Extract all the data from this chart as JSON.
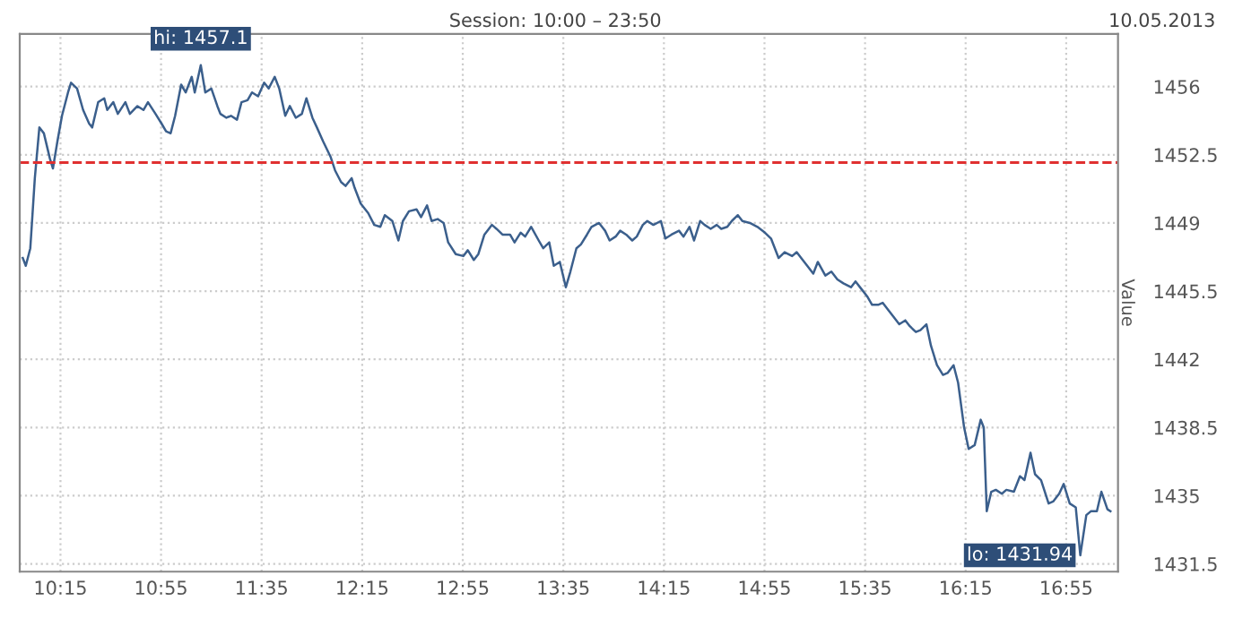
{
  "chart_data": {
    "type": "line",
    "ylabel": "Value",
    "annotations": [
      "Session: 10:00 – 23:50",
      "10.05.2013",
      {
        "text": "hi: 1457.1",
        "x": 11.18,
        "y": 1457.1
      },
      {
        "text": "lo: 1431.94",
        "x": 17.01,
        "y": 1431.94
      }
    ],
    "series": [
      {
        "color": "#3b5f8c",
        "x": [
          10.0,
          10.02,
          10.05,
          10.08,
          10.11,
          10.14,
          10.18,
          10.2,
          10.23,
          10.26,
          10.3,
          10.32,
          10.36,
          10.4,
          10.44,
          10.46,
          10.5,
          10.54,
          10.56,
          10.6,
          10.63,
          10.68,
          10.71,
          10.76,
          10.8,
          10.83,
          10.88,
          10.92,
          10.95,
          10.98,
          11.01,
          11.05,
          11.08,
          11.12,
          11.14,
          11.18,
          11.21,
          11.25,
          11.29,
          11.31,
          11.35,
          11.38,
          11.42,
          11.45,
          11.49,
          11.52,
          11.56,
          11.6,
          11.63,
          11.67,
          11.7,
          11.74,
          11.77,
          11.81,
          11.85,
          11.88,
          11.92,
          11.95,
          11.99,
          12.04,
          12.07,
          12.11,
          12.14,
          12.18,
          12.2,
          12.24,
          12.29,
          12.33,
          12.37,
          12.4,
          12.45,
          12.49,
          12.52,
          12.56,
          12.61,
          12.64,
          12.68,
          12.71,
          12.75,
          12.79,
          12.82,
          12.87,
          12.92,
          12.95,
          12.99,
          13.02,
          13.06,
          13.11,
          13.14,
          13.18,
          13.23,
          13.26,
          13.3,
          13.33,
          13.37,
          13.42,
          13.45,
          13.49,
          13.52,
          13.56,
          13.6,
          13.63,
          13.67,
          13.7,
          13.74,
          13.77,
          13.82,
          13.86,
          13.89,
          13.93,
          13.96,
          14.0,
          14.04,
          14.07,
          14.11,
          14.14,
          14.18,
          14.23,
          14.26,
          14.3,
          14.35,
          14.38,
          14.42,
          14.45,
          14.49,
          14.52,
          14.56,
          14.6,
          14.63,
          14.67,
          14.7,
          14.74,
          14.77,
          14.82,
          14.87,
          14.92,
          14.96,
          15.01,
          15.05,
          15.1,
          15.13,
          15.17,
          15.2,
          15.24,
          15.27,
          15.32,
          15.36,
          15.4,
          15.44,
          15.49,
          15.52,
          15.56,
          15.6,
          15.63,
          15.67,
          15.7,
          15.74,
          15.77,
          15.81,
          15.85,
          15.88,
          15.92,
          15.95,
          15.99,
          16.02,
          16.06,
          16.1,
          16.13,
          16.17,
          16.2,
          16.24,
          16.27,
          16.31,
          16.35,
          16.37,
          16.39,
          16.42,
          16.45,
          16.49,
          16.52,
          16.57,
          16.61,
          16.64,
          16.68,
          16.71,
          16.75,
          16.8,
          16.83,
          16.87,
          16.9,
          16.94,
          16.98,
          17.01,
          17.05,
          17.08,
          17.12,
          17.15,
          17.19,
          17.21
        ],
        "values": [
          1447.2,
          1446.8,
          1447.7,
          1451.3,
          1453.9,
          1453.6,
          1452.3,
          1451.8,
          1453.2,
          1454.5,
          1455.7,
          1456.2,
          1455.9,
          1454.8,
          1454.1,
          1453.9,
          1455.2,
          1455.4,
          1454.8,
          1455.2,
          1454.6,
          1455.2,
          1454.6,
          1455.0,
          1454.8,
          1455.2,
          1454.6,
          1454.1,
          1453.7,
          1453.6,
          1454.5,
          1456.1,
          1455.7,
          1456.5,
          1455.7,
          1457.1,
          1455.7,
          1455.9,
          1455.0,
          1454.6,
          1454.4,
          1454.5,
          1454.3,
          1455.2,
          1455.3,
          1455.7,
          1455.5,
          1456.2,
          1455.9,
          1456.5,
          1455.9,
          1454.5,
          1455.0,
          1454.4,
          1454.6,
          1455.4,
          1454.4,
          1453.9,
          1453.2,
          1452.4,
          1451.7,
          1451.1,
          1450.9,
          1451.3,
          1450.8,
          1450.0,
          1449.5,
          1448.9,
          1448.8,
          1449.4,
          1449.1,
          1448.1,
          1449.1,
          1449.6,
          1449.7,
          1449.3,
          1449.9,
          1449.1,
          1449.2,
          1449.0,
          1448.0,
          1447.4,
          1447.3,
          1447.6,
          1447.1,
          1447.4,
          1448.4,
          1448.9,
          1448.7,
          1448.4,
          1448.4,
          1448.0,
          1448.5,
          1448.3,
          1448.8,
          1448.1,
          1447.7,
          1448.0,
          1446.8,
          1447.0,
          1445.7,
          1446.5,
          1447.7,
          1447.9,
          1448.4,
          1448.8,
          1449.0,
          1448.6,
          1448.1,
          1448.3,
          1448.6,
          1448.4,
          1448.1,
          1448.3,
          1448.9,
          1449.1,
          1448.9,
          1449.1,
          1448.2,
          1448.4,
          1448.6,
          1448.3,
          1448.8,
          1448.1,
          1449.1,
          1448.9,
          1448.7,
          1448.9,
          1448.7,
          1448.8,
          1449.1,
          1449.4,
          1449.1,
          1449.0,
          1448.8,
          1448.5,
          1448.2,
          1447.2,
          1447.5,
          1447.3,
          1447.5,
          1447.1,
          1446.8,
          1446.4,
          1447.0,
          1446.3,
          1446.5,
          1446.1,
          1445.9,
          1445.7,
          1446.0,
          1445.6,
          1445.2,
          1444.8,
          1444.8,
          1444.9,
          1444.5,
          1444.2,
          1443.8,
          1444.0,
          1443.7,
          1443.4,
          1443.5,
          1443.8,
          1442.7,
          1441.7,
          1441.2,
          1441.3,
          1441.7,
          1440.8,
          1438.5,
          1437.4,
          1437.6,
          1438.9,
          1438.5,
          1434.2,
          1435.2,
          1435.3,
          1435.1,
          1435.3,
          1435.2,
          1436.0,
          1435.8,
          1437.2,
          1436.1,
          1435.8,
          1434.6,
          1434.7,
          1435.1,
          1435.6,
          1434.6,
          1434.4,
          1431.94,
          1434.0,
          1434.2,
          1434.2,
          1435.2,
          1434.3,
          1434.2
        ]
      }
    ],
    "xlim": [
      9.98,
      17.26
    ],
    "ylim": [
      1431.1,
      1458.7
    ],
    "xticks": [
      {
        "value": 10.25,
        "label": "10:15"
      },
      {
        "value": 10.9167,
        "label": "10:55"
      },
      {
        "value": 11.5833,
        "label": "11:35"
      },
      {
        "value": 12.25,
        "label": "12:15"
      },
      {
        "value": 12.9167,
        "label": "12:55"
      },
      {
        "value": 13.5833,
        "label": "13:35"
      },
      {
        "value": 14.25,
        "label": "14:15"
      },
      {
        "value": 14.9167,
        "label": "14:55"
      },
      {
        "value": 15.5833,
        "label": "15:35"
      },
      {
        "value": 16.25,
        "label": "16:15"
      },
      {
        "value": 16.9167,
        "label": "16:55"
      }
    ],
    "yticks": [
      1431.5,
      1435,
      1438.5,
      1442,
      1445.5,
      1449,
      1452.5,
      1456
    ],
    "ref_lines": [
      {
        "axis": "y",
        "value": 1452.1,
        "color": "#e03030",
        "line_style": "dashed"
      }
    ],
    "grid": true,
    "legend": false,
    "line_style": "solid",
    "marker": "none"
  }
}
